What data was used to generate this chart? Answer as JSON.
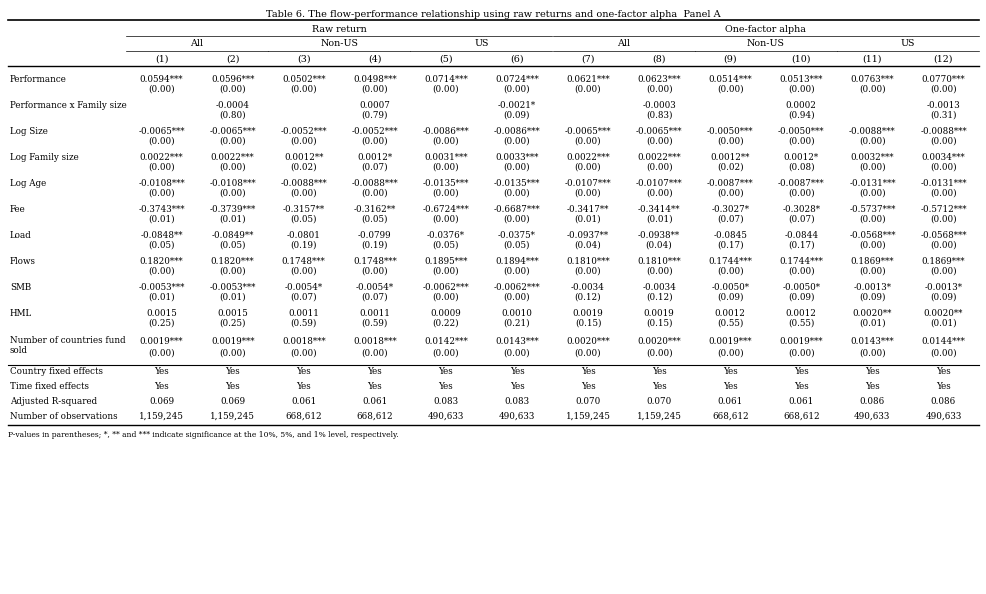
{
  "title": "Table 6. The flow-performance relationship using raw returns and one-factor alpha  Panel A",
  "footnote": "P-values in parentheses; *, ** and *** indicate significance at the 10%, 5%, and 1% level, respectively.",
  "rows": [
    {
      "label": "Performance",
      "values": [
        "0.0594***",
        "0.0596***",
        "0.0502***",
        "0.0498***",
        "0.0714***",
        "0.0724***",
        "0.0621***",
        "0.0623***",
        "0.0514***",
        "0.0513***",
        "0.0763***",
        "0.0770***"
      ],
      "pvalues": [
        "(0.00)",
        "(0.00)",
        "(0.00)",
        "(0.00)",
        "(0.00)",
        "(0.00)",
        "(0.00)",
        "(0.00)",
        "(0.00)",
        "(0.00)",
        "(0.00)",
        "(0.00)"
      ]
    },
    {
      "label": "Performance x Family size",
      "values": [
        "",
        "-0.0004",
        "",
        "0.0007",
        "",
        "-0.0021*",
        "",
        "-0.0003",
        "",
        "0.0002",
        "",
        "-0.0013"
      ],
      "pvalues": [
        "",
        "(0.80)",
        "",
        "(0.79)",
        "",
        "(0.09)",
        "",
        "(0.83)",
        "",
        "(0.94)",
        "",
        "(0.31)"
      ]
    },
    {
      "label": "Log Size",
      "values": [
        "-0.0065***",
        "-0.0065***",
        "-0.0052***",
        "-0.0052***",
        "-0.0086***",
        "-0.0086***",
        "-0.0065***",
        "-0.0065***",
        "-0.0050***",
        "-0.0050***",
        "-0.0088***",
        "-0.0088***"
      ],
      "pvalues": [
        "(0.00)",
        "(0.00)",
        "(0.00)",
        "(0.00)",
        "(0.00)",
        "(0.00)",
        "(0.00)",
        "(0.00)",
        "(0.00)",
        "(0.00)",
        "(0.00)",
        "(0.00)"
      ]
    },
    {
      "label": "Log Family size",
      "values": [
        "0.0022***",
        "0.0022***",
        "0.0012**",
        "0.0012*",
        "0.0031***",
        "0.0033***",
        "0.0022***",
        "0.0022***",
        "0.0012**",
        "0.0012*",
        "0.0032***",
        "0.0034***"
      ],
      "pvalues": [
        "(0.00)",
        "(0.00)",
        "(0.02)",
        "(0.07)",
        "(0.00)",
        "(0.00)",
        "(0.00)",
        "(0.00)",
        "(0.02)",
        "(0.08)",
        "(0.00)",
        "(0.00)"
      ]
    },
    {
      "label": "Log Age",
      "values": [
        "-0.0108***",
        "-0.0108***",
        "-0.0088***",
        "-0.0088***",
        "-0.0135***",
        "-0.0135***",
        "-0.0107***",
        "-0.0107***",
        "-0.0087***",
        "-0.0087***",
        "-0.0131***",
        "-0.0131***"
      ],
      "pvalues": [
        "(0.00)",
        "(0.00)",
        "(0.00)",
        "(0.00)",
        "(0.00)",
        "(0.00)",
        "(0.00)",
        "(0.00)",
        "(0.00)",
        "(0.00)",
        "(0.00)",
        "(0.00)"
      ]
    },
    {
      "label": "Fee",
      "values": [
        "-0.3743***",
        "-0.3739***",
        "-0.3157**",
        "-0.3162**",
        "-0.6724***",
        "-0.6687***",
        "-0.3417**",
        "-0.3414**",
        "-0.3027*",
        "-0.3028*",
        "-0.5737***",
        "-0.5712***"
      ],
      "pvalues": [
        "(0.01)",
        "(0.01)",
        "(0.05)",
        "(0.05)",
        "(0.00)",
        "(0.00)",
        "(0.01)",
        "(0.01)",
        "(0.07)",
        "(0.07)",
        "(0.00)",
        "(0.00)"
      ]
    },
    {
      "label": "Load",
      "values": [
        "-0.0848**",
        "-0.0849**",
        "-0.0801",
        "-0.0799",
        "-0.0376*",
        "-0.0375*",
        "-0.0937**",
        "-0.0938**",
        "-0.0845",
        "-0.0844",
        "-0.0568***",
        "-0.0568***"
      ],
      "pvalues": [
        "(0.05)",
        "(0.05)",
        "(0.19)",
        "(0.19)",
        "(0.05)",
        "(0.05)",
        "(0.04)",
        "(0.04)",
        "(0.17)",
        "(0.17)",
        "(0.00)",
        "(0.00)"
      ]
    },
    {
      "label": "Flows",
      "values": [
        "0.1820***",
        "0.1820***",
        "0.1748***",
        "0.1748***",
        "0.1895***",
        "0.1894***",
        "0.1810***",
        "0.1810***",
        "0.1744***",
        "0.1744***",
        "0.1869***",
        "0.1869***"
      ],
      "pvalues": [
        "(0.00)",
        "(0.00)",
        "(0.00)",
        "(0.00)",
        "(0.00)",
        "(0.00)",
        "(0.00)",
        "(0.00)",
        "(0.00)",
        "(0.00)",
        "(0.00)",
        "(0.00)"
      ]
    },
    {
      "label": "SMB",
      "values": [
        "-0.0053***",
        "-0.0053***",
        "-0.0054*",
        "-0.0054*",
        "-0.0062***",
        "-0.0062***",
        "-0.0034",
        "-0.0034",
        "-0.0050*",
        "-0.0050*",
        "-0.0013*",
        "-0.0013*"
      ],
      "pvalues": [
        "(0.01)",
        "(0.01)",
        "(0.07)",
        "(0.07)",
        "(0.00)",
        "(0.00)",
        "(0.12)",
        "(0.12)",
        "(0.09)",
        "(0.09)",
        "(0.09)",
        "(0.09)"
      ]
    },
    {
      "label": "HML",
      "values": [
        "0.0015",
        "0.0015",
        "0.0011",
        "0.0011",
        "0.0009",
        "0.0010",
        "0.0019",
        "0.0019",
        "0.0012",
        "0.0012",
        "0.0020**",
        "0.0020**"
      ],
      "pvalues": [
        "(0.25)",
        "(0.25)",
        "(0.59)",
        "(0.59)",
        "(0.22)",
        "(0.21)",
        "(0.15)",
        "(0.15)",
        "(0.55)",
        "(0.55)",
        "(0.01)",
        "(0.01)"
      ]
    },
    {
      "label": "Number of countries fund sold",
      "label_line1": "Number of countries fund",
      "label_line2": "sold",
      "values": [
        "0.0019***",
        "0.0019***",
        "0.0018***",
        "0.0018***",
        "0.0142***",
        "0.0143***",
        "0.0020***",
        "0.0020***",
        "0.0019***",
        "0.0019***",
        "0.0143***",
        "0.0144***"
      ],
      "pvalues": [
        "(0.00)",
        "(0.00)",
        "(0.00)",
        "(0.00)",
        "(0.00)",
        "(0.00)",
        "(0.00)",
        "(0.00)",
        "(0.00)",
        "(0.00)",
        "(0.00)",
        "(0.00)"
      ]
    },
    {
      "label": "Country fixed effects",
      "values": [
        "Yes",
        "Yes",
        "Yes",
        "Yes",
        "Yes",
        "Yes",
        "Yes",
        "Yes",
        "Yes",
        "Yes",
        "Yes",
        "Yes"
      ],
      "pvalues": []
    },
    {
      "label": "Time fixed effects",
      "values": [
        "Yes",
        "Yes",
        "Yes",
        "Yes",
        "Yes",
        "Yes",
        "Yes",
        "Yes",
        "Yes",
        "Yes",
        "Yes",
        "Yes"
      ],
      "pvalues": []
    },
    {
      "label": "Adjusted R-squared",
      "values": [
        "0.069",
        "0.069",
        "0.061",
        "0.061",
        "0.083",
        "0.083",
        "0.070",
        "0.070",
        "0.061",
        "0.061",
        "0.086",
        "0.086"
      ],
      "pvalues": []
    },
    {
      "label": "Number of observations",
      "values": [
        "1,159,245",
        "1,159,245",
        "668,612",
        "668,612",
        "490,633",
        "490,633",
        "1,159,245",
        "1,159,245",
        "668,612",
        "668,612",
        "490,633",
        "490,633"
      ],
      "pvalues": []
    }
  ]
}
